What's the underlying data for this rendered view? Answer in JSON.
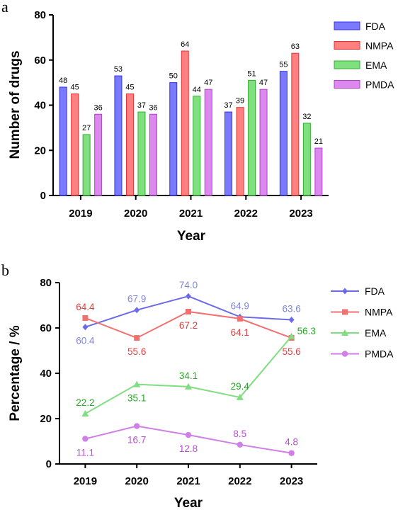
{
  "chart_data": [
    {
      "panel": "a",
      "type": "bar",
      "categories": [
        "2019",
        "2020",
        "2021",
        "2022",
        "2023"
      ],
      "series": [
        {
          "name": "FDA",
          "values": [
            48,
            53,
            50,
            37,
            55
          ]
        },
        {
          "name": "NMPA",
          "values": [
            45,
            45,
            64,
            39,
            63
          ]
        },
        {
          "name": "EMA",
          "values": [
            27,
            37,
            44,
            51,
            32
          ]
        },
        {
          "name": "PMDA",
          "values": [
            36,
            36,
            47,
            47,
            21
          ]
        }
      ],
      "xlabel": "Year",
      "ylabel": "Number of drugs",
      "ylim": [
        0,
        80
      ],
      "yticks": [
        "0",
        "20",
        "40",
        "60",
        "80"
      ],
      "legend_position": "right",
      "grid": false
    },
    {
      "panel": "b",
      "type": "line",
      "categories": [
        "2019",
        "2020",
        "2021",
        "2022",
        "2023"
      ],
      "series": [
        {
          "name": "FDA",
          "values": [
            60.4,
            67.9,
            74.0,
            64.9,
            63.6
          ],
          "labels": [
            "60.4",
            "67.9",
            "74.0",
            "64.9",
            "63.6"
          ],
          "marker": "diamond"
        },
        {
          "name": "NMPA",
          "values": [
            64.4,
            55.6,
            67.2,
            64.1,
            55.6
          ],
          "labels": [
            "64.4",
            "55.6",
            "67.2",
            "64.1",
            "55.6"
          ],
          "marker": "square"
        },
        {
          "name": "EMA",
          "values": [
            22.2,
            35.1,
            34.1,
            29.4,
            56.3
          ],
          "labels": [
            "22.2",
            "35.1",
            "34.1",
            "29.4",
            "56.3"
          ],
          "marker": "triangle"
        },
        {
          "name": "PMDA",
          "values": [
            11.1,
            16.7,
            12.8,
            8.5,
            4.8
          ],
          "labels": [
            "11.1",
            "16.7",
            "12.8",
            "8.5",
            "4.8"
          ],
          "marker": "circle"
        }
      ],
      "xlabel": "Year",
      "ylabel": "Percentage / %",
      "ylim": [
        0,
        80
      ],
      "yticks": [
        "0",
        "20",
        "40",
        "60",
        "80"
      ],
      "legend_position": "right",
      "grid": false
    }
  ],
  "colors": {
    "FDA": {
      "fill": "#7a7aff",
      "stroke": "#3030f0",
      "line": "#6b6bea",
      "label_bar": "#000000",
      "label_line": "#7f86e0"
    },
    "NMPA": {
      "fill": "#ff8080",
      "stroke": "#ee3030",
      "line": "#f27070",
      "label_bar": "#000000",
      "label_line": "#e04040"
    },
    "EMA": {
      "fill": "#80e080",
      "stroke": "#30b030",
      "line": "#80dd80",
      "label_bar": "#000000",
      "label_line": "#22aa22"
    },
    "PMDA": {
      "fill": "#dd88ee",
      "stroke": "#b040cc",
      "line": "#cf7fe6",
      "label_bar": "#000000",
      "label_line": "#b84fd0"
    }
  }
}
